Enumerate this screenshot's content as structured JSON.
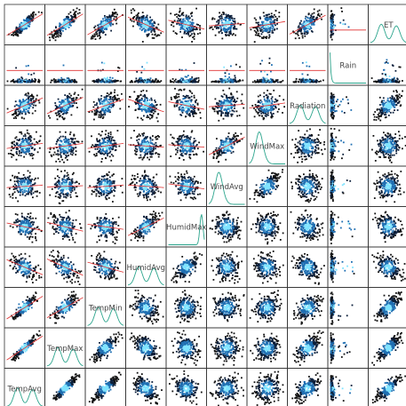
{
  "chart_data": {
    "type": "scatter",
    "subtype": "scatterplot-matrix",
    "variables": [
      "TempAvg",
      "TempMax",
      "TempMin",
      "HumidAvg",
      "HumidMax",
      "WindAvg",
      "WindMax",
      "Radiation",
      "Rain",
      "ET"
    ],
    "diagonal": "density curve with variable name",
    "upper_triangle": "2D hexbin/density scatter (blue-cyan color scale)",
    "lower_triangle": "scatter with red loess smoothing line",
    "colors": {
      "density_low": "#0b1e3a",
      "density_mid": "#1f6fb2",
      "density_high": "#7fe3ff",
      "density_curve": "#2ca58d",
      "smooth_line": "#e03030",
      "points": "#111111"
    },
    "approx_correlations": {
      "TempAvg": {
        "TempMax": 0.95,
        "TempMin": 0.9,
        "HumidAvg": -0.6,
        "HumidMax": -0.3,
        "WindAvg": 0.1,
        "WindMax": 0.2,
        "Radiation": 0.6,
        "Rain": -0.1,
        "ET": 0.85
      },
      "TempMax": {
        "TempMin": 0.8,
        "HumidAvg": -0.65,
        "HumidMax": -0.35,
        "WindAvg": 0.05,
        "WindMax": 0.2,
        "Radiation": 0.65,
        "Rain": -0.1,
        "ET": 0.85
      },
      "TempMin": {
        "HumidAvg": -0.4,
        "HumidMax": -0.2,
        "WindAvg": 0.1,
        "WindMax": 0.2,
        "Radiation": 0.5,
        "Rain": 0.0,
        "ET": 0.8
      },
      "HumidAvg": {
        "HumidMax": 0.7,
        "WindAvg": -0.1,
        "WindMax": -0.1,
        "Radiation": -0.5,
        "Rain": 0.1,
        "ET": -0.6
      },
      "HumidMax": {
        "WindAvg": -0.2,
        "WindMax": -0.1,
        "Radiation": -0.3,
        "Rain": 0.05,
        "ET": -0.35
      },
      "WindAvg": {
        "WindMax": 0.7,
        "Radiation": 0.1,
        "Rain": 0.0,
        "ET": 0.1
      },
      "WindMax": {
        "Radiation": 0.2,
        "Rain": 0.0,
        "ET": 0.25
      },
      "Radiation": {
        "Rain": -0.2,
        "ET": 0.75
      },
      "Rain": {
        "ET": -0.15
      }
    }
  }
}
